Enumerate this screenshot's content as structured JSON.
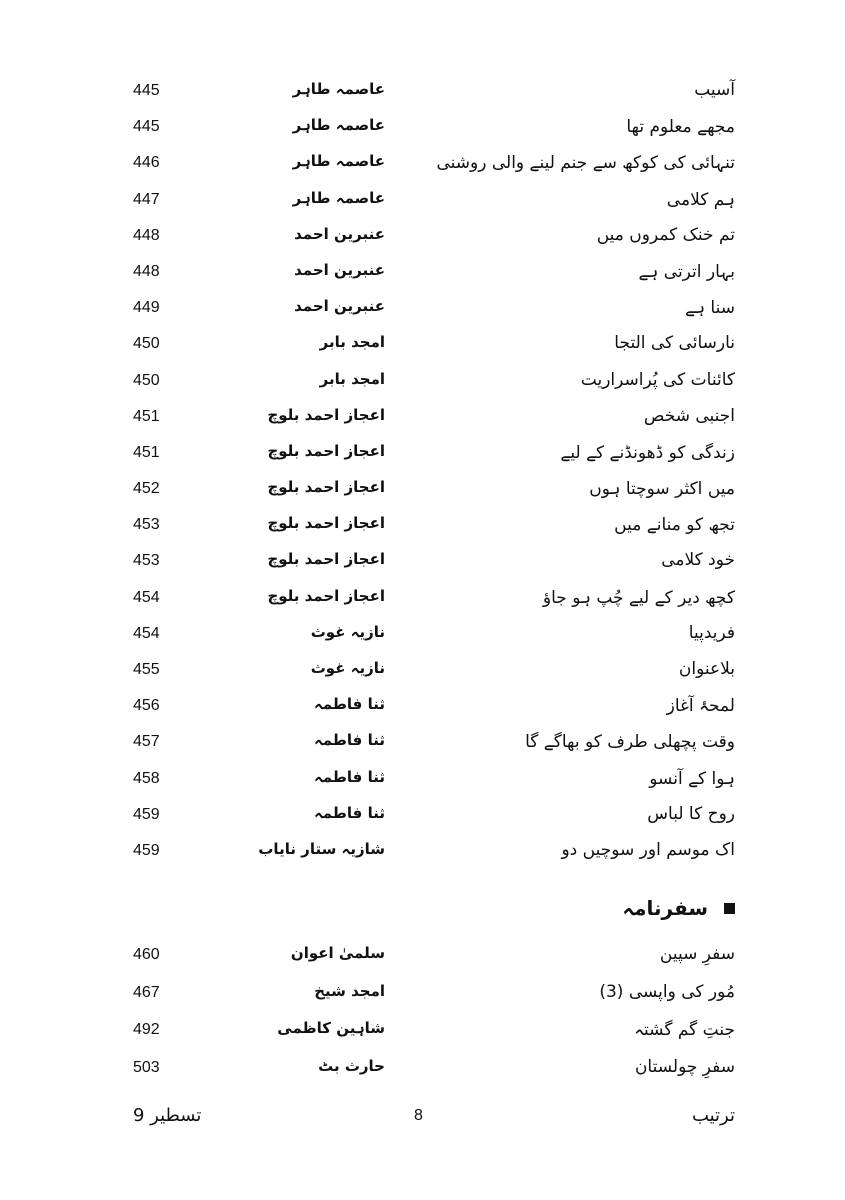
{
  "entries": [
    {
      "title": "آسیب",
      "author": "عاصمہ طاہر",
      "page": "445"
    },
    {
      "title": "مجھے معلوم تھا",
      "author": "عاصمہ طاہر",
      "page": "445"
    },
    {
      "title": "تنہائی کی کوکھ سے جنم لینے والی روشنی",
      "author": "عاصمہ طاہر",
      "page": "446"
    },
    {
      "title": "ہم کلامی",
      "author": "عاصمہ طاہر",
      "page": "447"
    },
    {
      "title": "تم خنک کمروں میں",
      "author": "عنبرین احمد",
      "page": "448"
    },
    {
      "title": "بہار اترتی ہے",
      "author": "عنبرین احمد",
      "page": "448"
    },
    {
      "title": "سنا ہے",
      "author": "عنبرین احمد",
      "page": "449"
    },
    {
      "title": "نارسائی کی التجا",
      "author": "امجد بابر",
      "page": "450"
    },
    {
      "title": "کائنات کی پُراسراریت",
      "author": "امجد بابر",
      "page": "450"
    },
    {
      "title": "اجنبی شخص",
      "author": "اعجاز احمد بلوچ",
      "page": "451"
    },
    {
      "title": "زندگی کو ڈھونڈنے کے لیے",
      "author": "اعجاز احمد بلوچ",
      "page": "451"
    },
    {
      "title": "میں اکثر سوچتا ہوں",
      "author": "اعجاز احمد بلوچ",
      "page": "452"
    },
    {
      "title": "تجھ کو منانے میں",
      "author": "اعجاز احمد بلوچ",
      "page": "453"
    },
    {
      "title": "خود کلامی",
      "author": "اعجاز احمد بلوچ",
      "page": "453"
    },
    {
      "title": "کچھ دیر کے لیے چُپ ہو جاؤ",
      "author": "اعجاز احمد بلوچ",
      "page": "454"
    },
    {
      "title": "فریدپیا",
      "author": "نازیہ غوث",
      "page": "454"
    },
    {
      "title": "بلاعنوان",
      "author": "نازیہ غوث",
      "page": "455"
    },
    {
      "title": "لمحۂ آغاز",
      "author": "ثنا فاطمہ",
      "page": "456"
    },
    {
      "title": "وقت پچھلی طرف کو بھاگے گا",
      "author": "ثنا فاطمہ",
      "page": "457"
    },
    {
      "title": "ہوا کے آنسو",
      "author": "ثنا فاطمہ",
      "page": "458"
    },
    {
      "title": "روح کا لباس",
      "author": "ثنا فاطمہ",
      "page": "459"
    },
    {
      "title": "اک موسم اور سوچیں دو",
      "author": "شازیہ ستار نایاب",
      "page": "459"
    }
  ],
  "section": {
    "heading": "سفرنامہ",
    "icon": "square-bullet-icon",
    "entries": [
      {
        "title": "سفرِ سپین",
        "author": "سلمیٰ اعوان",
        "page": "460"
      },
      {
        "title": "مُور کی واپسی (3)",
        "author": "امجد شیخ",
        "page": "467"
      },
      {
        "title": "جنتِ گم گشتہ",
        "author": "شاہین کاظمی",
        "page": "492"
      },
      {
        "title": "سفرِ چولستان",
        "author": "حارث بٹ",
        "page": "503"
      }
    ]
  },
  "footer": {
    "left": "تسطیر 9",
    "center": "8",
    "right": "ترتیب"
  }
}
